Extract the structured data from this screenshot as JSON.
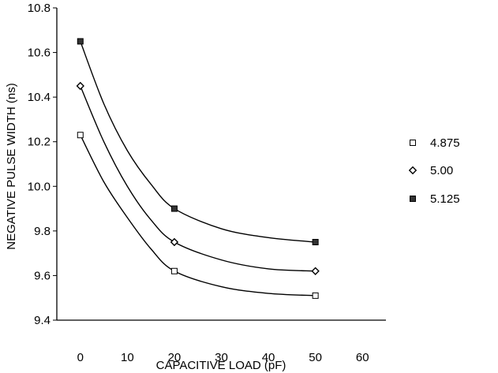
{
  "chart_data": {
    "type": "line",
    "title": "",
    "xlabel": "CAPACITIVE LOAD (pF)",
    "ylabel": "NEGATIVE PULSE WIDTH (ns)",
    "xlim": [
      -5,
      65
    ],
    "ylim": [
      9.4,
      10.8
    ],
    "x_ticks": [
      0,
      10,
      20,
      30,
      40,
      50,
      60
    ],
    "y_ticks": [
      9.4,
      9.6,
      9.8,
      10.0,
      10.2,
      10.4,
      10.6,
      10.8
    ],
    "x_tick_labels": [
      "0",
      "10",
      "20",
      "30",
      "40",
      "50",
      "60"
    ],
    "y_tick_labels": [
      "9.4",
      "9.6",
      "9.8",
      "10.0",
      "10.2",
      "10.4",
      "10.6",
      "10.8"
    ],
    "grid": false,
    "legend_position": "right",
    "series": [
      {
        "name": "4.875",
        "marker": "open-square",
        "x": [
          0,
          20,
          50
        ],
        "y": [
          10.23,
          9.62,
          9.51
        ],
        "curve": [
          [
            0,
            10.23
          ],
          [
            5,
            10.02
          ],
          [
            10,
            9.86
          ],
          [
            15,
            9.72
          ],
          [
            20,
            9.62
          ],
          [
            30,
            9.55
          ],
          [
            40,
            9.52
          ],
          [
            50,
            9.51
          ]
        ]
      },
      {
        "name": "5.00",
        "marker": "open-diamond",
        "x": [
          0,
          20,
          50
        ],
        "y": [
          10.45,
          9.75,
          9.62
        ],
        "curve": [
          [
            0,
            10.45
          ],
          [
            5,
            10.2
          ],
          [
            10,
            10.0
          ],
          [
            15,
            9.85
          ],
          [
            20,
            9.75
          ],
          [
            30,
            9.67
          ],
          [
            40,
            9.63
          ],
          [
            50,
            9.62
          ]
        ]
      },
      {
        "name": "5.125",
        "marker": "filled-square",
        "x": [
          0,
          20,
          50
        ],
        "y": [
          10.65,
          9.9,
          9.75
        ],
        "curve": [
          [
            0,
            10.65
          ],
          [
            5,
            10.37
          ],
          [
            10,
            10.16
          ],
          [
            15,
            10.01
          ],
          [
            20,
            9.9
          ],
          [
            30,
            9.81
          ],
          [
            40,
            9.77
          ],
          [
            50,
            9.75
          ]
        ]
      }
    ],
    "colors": {
      "line": "#000000",
      "marker_fill_dark": "#333333",
      "background": "#ffffff"
    }
  }
}
